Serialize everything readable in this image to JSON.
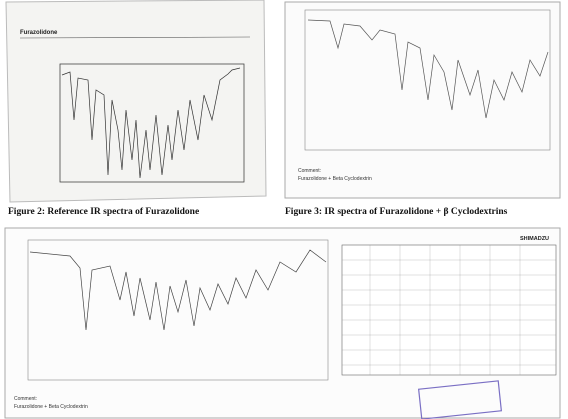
{
  "figure2": {
    "panel_title": "Furazolidone",
    "caption": "Figure 2: Reference IR spectra of Furazolidone"
  },
  "figure3": {
    "comment_label": "Comment:",
    "comment": "Furazolidone + Beta Cyclodextrin",
    "caption": "Figure 3: IR spectra of Furazolidone + β Cyclodextrins"
  },
  "bottom": {
    "comment_label": "Comment:",
    "comment": "Furazolidone + Beta Cyclodextrin",
    "brand": "SHIMADZU"
  }
}
